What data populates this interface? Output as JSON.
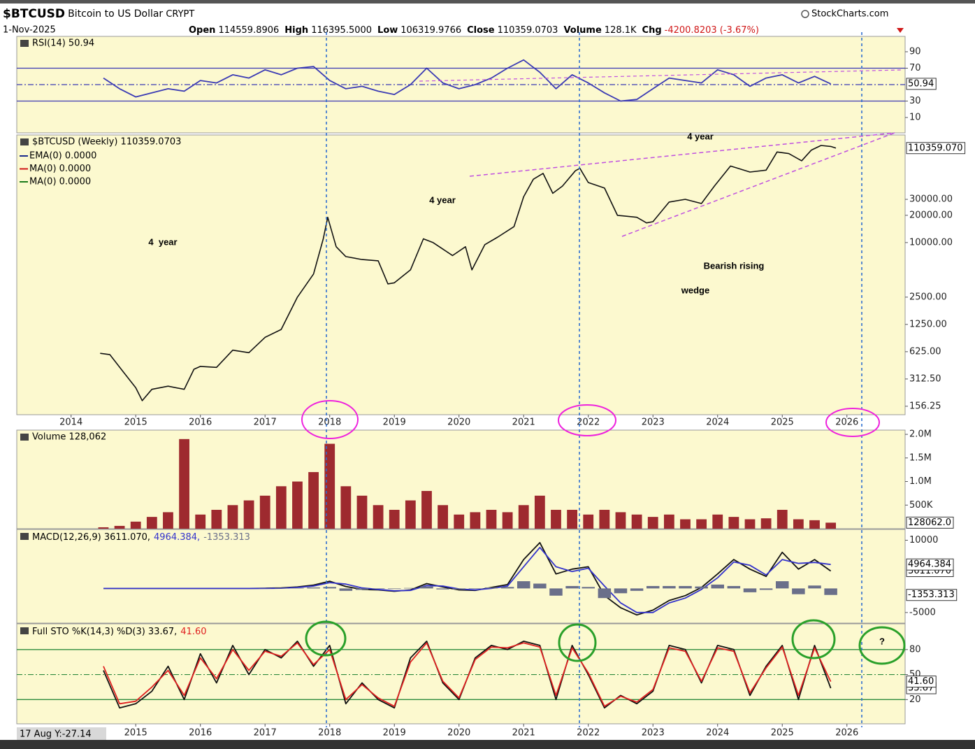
{
  "header": {
    "symbol": "$BTCUSD",
    "name": "Bitcoin to US Dollar",
    "exchange": "CRYPT",
    "source": "StockCharts.com",
    "date": "1-Nov-2025",
    "quote": [
      {
        "label": "Open",
        "value": "114559.8906"
      },
      {
        "label": "High",
        "value": "116395.5000"
      },
      {
        "label": "Low",
        "value": "106319.9766"
      },
      {
        "label": "Close",
        "value": "110359.0703"
      },
      {
        "label": "Volume",
        "value": "128.1K"
      },
      {
        "label": "Chg",
        "value": "-4200.8203 (-3.67%)"
      }
    ]
  },
  "footer": "17 Aug Y:-27.14",
  "chart_data": [
    {
      "type": "line",
      "title": "RSI(14) 50.94",
      "xlim": [
        2013.16,
        2026.9
      ],
      "ylim": [
        -8.7,
        108.7
      ],
      "yticks": [
        10,
        30,
        70,
        90
      ],
      "hlines": [
        70,
        30
      ],
      "dashlines": [
        50
      ],
      "ref_color": "#3a3ab4",
      "x": [
        2014.5,
        2014.75,
        2015,
        2015.25,
        2015.5,
        2015.75,
        2016,
        2016.25,
        2016.5,
        2016.75,
        2017,
        2017.25,
        2017.5,
        2017.75,
        2018,
        2018.25,
        2018.5,
        2018.75,
        2019,
        2019.25,
        2019.5,
        2019.75,
        2020,
        2020.25,
        2020.5,
        2020.75,
        2021,
        2021.25,
        2021.5,
        2021.75,
        2022,
        2022.25,
        2022.5,
        2022.75,
        2023,
        2023.25,
        2023.5,
        2023.75,
        2024,
        2024.25,
        2024.5,
        2024.75,
        2025,
        2025.25,
        2025.5,
        2025.75
      ],
      "series": [
        {
          "name": "RSI(14)",
          "color": "#3a3ab4",
          "last_label": "50.94",
          "values": [
            58,
            45,
            35,
            40,
            45,
            42,
            55,
            52,
            62,
            58,
            68,
            62,
            70,
            72,
            55,
            45,
            48,
            42,
            38,
            50,
            70,
            52,
            45,
            50,
            58,
            70,
            80,
            65,
            45,
            62,
            52,
            40,
            30,
            32,
            45,
            58,
            55,
            52,
            68,
            62,
            48,
            58,
            62,
            52,
            60,
            50.94
          ]
        }
      ]
    },
    {
      "type": "line",
      "log_scale": true,
      "title": "$BTCUSD (Weekly) 110359.0703",
      "legend": [
        {
          "text": "EMA(0) 0.0000",
          "color": "#1a2a8c"
        },
        {
          "text": "MA(0) 0.0000",
          "color": "#d01818"
        },
        {
          "text": "MA(0) 0.0000",
          "color": "#1a7a1a"
        }
      ],
      "xlim": [
        2013.16,
        2026.9
      ],
      "xticks": [
        2014,
        2015,
        2016,
        2017,
        2018,
        2019,
        2020,
        2021,
        2022,
        2023,
        2024,
        2025,
        2026
      ],
      "ylim": [
        126,
        154000
      ],
      "yticks": [
        156.25,
        {
          "value": 312.5,
          "label": "312.50"
        },
        {
          "value": 625,
          "label": "625.00"
        },
        {
          "value": 1250,
          "label": "1250.00"
        },
        {
          "value": 2500,
          "label": "2500.00"
        },
        {
          "value": 10000,
          "label": "10000.00"
        },
        {
          "value": 20000,
          "label": "20000.00"
        },
        {
          "value": 30000,
          "label": "30000.00"
        }
      ],
      "x": [
        2014.45,
        2014.6,
        2014.8,
        2015.0,
        2015.1,
        2015.25,
        2015.5,
        2015.75,
        2015.9,
        2016.0,
        2016.25,
        2016.5,
        2016.75,
        2017.0,
        2017.25,
        2017.5,
        2017.75,
        2017.9,
        2017.97,
        2018.1,
        2018.25,
        2018.5,
        2018.75,
        2018.9,
        2019.0,
        2019.25,
        2019.45,
        2019.6,
        2019.9,
        2020.1,
        2020.2,
        2020.4,
        2020.6,
        2020.85,
        2021.0,
        2021.15,
        2021.3,
        2021.45,
        2021.6,
        2021.8,
        2021.87,
        2022.0,
        2022.25,
        2022.45,
        2022.75,
        2022.9,
        2023.0,
        2023.25,
        2023.5,
        2023.75,
        2023.95,
        2024.2,
        2024.5,
        2024.75,
        2024.92,
        2025.1,
        2025.3,
        2025.45,
        2025.6,
        2025.75,
        2025.83
      ],
      "series": [
        {
          "name": "$BTCUSD",
          "color": "#111111",
          "last_label": "110359.070",
          "values": [
            600,
            580,
            380,
            250,
            180,
            240,
            260,
            240,
            400,
            430,
            420,
            650,
            610,
            900,
            1100,
            2500,
            4500,
            11000,
            19000,
            9000,
            7000,
            6500,
            6300,
            3500,
            3600,
            5000,
            11000,
            10000,
            7200,
            9000,
            5000,
            9500,
            11500,
            15000,
            32000,
            50000,
            58000,
            35000,
            42000,
            62000,
            66000,
            46000,
            40000,
            20000,
            19000,
            16500,
            17000,
            28000,
            30000,
            27000,
            42000,
            70000,
            60000,
            63000,
            100000,
            96000,
            80000,
            105000,
            118000,
            115000,
            110359.0703
          ]
        }
      ],
      "annotations": [
        {
          "text": "4 year",
          "color": "#4a86c8"
        },
        {
          "text": "4 year",
          "color": "#4a86c8"
        },
        {
          "text": "4  year",
          "color": "#4a86c8"
        },
        {
          "text": "Bearish rising",
          "color": "#e8201c"
        },
        {
          "text": "wedge",
          "color": "#e8201c"
        }
      ]
    },
    {
      "type": "bar",
      "title": "Volume 128,062",
      "color": "#9e2a2f",
      "last_label": "128062.0",
      "xlim": [
        2013.16,
        2026.9
      ],
      "ylim": [
        0,
        2090000
      ],
      "yticks": [
        {
          "value": 2000000,
          "label": "2.0M"
        },
        {
          "value": 1500000,
          "label": "1.5M"
        },
        {
          "value": 1000000,
          "label": "1.0M"
        },
        {
          "value": 500000,
          "label": "500K"
        }
      ],
      "x": [
        2014.5,
        2014.75,
        2015,
        2015.25,
        2015.5,
        2015.75,
        2016,
        2016.25,
        2016.5,
        2016.75,
        2017,
        2017.25,
        2017.5,
        2017.75,
        2018,
        2018.25,
        2018.5,
        2018.75,
        2019,
        2019.25,
        2019.5,
        2019.75,
        2020,
        2020.25,
        2020.5,
        2020.75,
        2021,
        2021.25,
        2021.5,
        2021.75,
        2022,
        2022.25,
        2022.5,
        2022.75,
        2023,
        2023.25,
        2023.5,
        2023.75,
        2024,
        2024.25,
        2024.5,
        2024.75,
        2025,
        2025.25,
        2025.5,
        2025.75
      ],
      "values": [
        30000,
        60000,
        150000,
        250000,
        350000,
        1900000,
        300000,
        400000,
        500000,
        600000,
        700000,
        900000,
        1000000,
        1200000,
        1800000,
        900000,
        700000,
        500000,
        400000,
        600000,
        800000,
        500000,
        300000,
        350000,
        400000,
        350000,
        500000,
        700000,
        400000,
        400000,
        300000,
        400000,
        350000,
        300000,
        250000,
        300000,
        200000,
        200000,
        300000,
        250000,
        200000,
        220000,
        400000,
        200000,
        180000,
        128062
      ]
    },
    {
      "type": "line",
      "title_parts": [
        "MACD(12,26,9) 3611.070,",
        "4964.384,",
        "-1353.313"
      ],
      "xlim": [
        2013.16,
        2026.9
      ],
      "ylim": [
        -7200,
        12250
      ],
      "yticks": [
        10000,
        -5000
      ],
      "x": [
        2014.5,
        2014.75,
        2015,
        2015.25,
        2015.5,
        2015.75,
        2016,
        2016.25,
        2016.5,
        2016.75,
        2017,
        2017.25,
        2017.5,
        2017.75,
        2018,
        2018.25,
        2018.5,
        2018.75,
        2019,
        2019.25,
        2019.5,
        2019.75,
        2020,
        2020.25,
        2020.5,
        2020.75,
        2021,
        2021.25,
        2021.5,
        2021.75,
        2022,
        2022.25,
        2022.5,
        2022.75,
        2023,
        2023.25,
        2023.5,
        2023.75,
        2024,
        2024.25,
        2024.5,
        2024.75,
        2025,
        2025.25,
        2025.5,
        2025.75
      ],
      "series": [
        {
          "name": "MACD",
          "color": "#111111",
          "last_label": "3611.070",
          "values": [
            0,
            0,
            0,
            0,
            0,
            0,
            0,
            0,
            0,
            0,
            50,
            100,
            300,
            700,
            1500,
            400,
            -200,
            -300,
            -600,
            -300,
            1000,
            300,
            -300,
            -400,
            200,
            800,
            6000,
            9500,
            3000,
            4000,
            4500,
            -1500,
            -4000,
            -5500,
            -4500,
            -2500,
            -1500,
            200,
            3000,
            6000,
            4000,
            2500,
            7500,
            4000,
            6000,
            3611.07
          ]
        },
        {
          "name": "Signal",
          "color": "#3333cc",
          "last_label": "4964.384",
          "values": [
            0,
            0,
            0,
            0,
            0,
            0,
            0,
            0,
            0,
            0,
            0,
            50,
            200,
            500,
            1200,
            900,
            100,
            -200,
            -500,
            -400,
            600,
            500,
            -100,
            -300,
            0,
            500,
            4500,
            8500,
            4500,
            3500,
            4200,
            500,
            -3000,
            -5000,
            -5000,
            -3000,
            -2000,
            -200,
            2200,
            5500,
            4800,
            2800,
            6000,
            5200,
            5400,
            4964.384
          ]
        },
        {
          "name": "Histogram",
          "style": "histogram",
          "color": "#6a6f8a",
          "last_label": "-1353.313",
          "values": [
            0,
            0,
            0,
            0,
            0,
            0,
            0,
            0,
            0,
            0,
            50,
            100,
            100,
            200,
            300,
            -500,
            -300,
            -100,
            -100,
            100,
            400,
            -200,
            -200,
            -100,
            200,
            300,
            1500,
            1000,
            -1500,
            500,
            300,
            -2000,
            -1000,
            -500,
            500,
            500,
            500,
            400,
            800,
            500,
            -800,
            -300,
            1500,
            -1200,
            600,
            -1353.313
          ]
        }
      ]
    },
    {
      "type": "line",
      "title_parts": [
        "Full STO %K(14,3) %D(3) 33.67,",
        "41.60"
      ],
      "xlim": [
        2013.16,
        2026.9
      ],
      "xticks": [
        2015,
        2016,
        2017,
        2018,
        2019,
        2020,
        2021,
        2022,
        2023,
        2024,
        2025,
        2026
      ],
      "ylim": [
        -9.1,
        110.9
      ],
      "yticks": [
        20,
        50,
        80
      ],
      "hlines": [
        80,
        20
      ],
      "dashlines": [
        50
      ],
      "ref_color": "#2e8b3e",
      "x": [
        2014.5,
        2014.75,
        2015,
        2015.25,
        2015.5,
        2015.75,
        2016,
        2016.25,
        2016.5,
        2016.75,
        2017,
        2017.25,
        2017.5,
        2017.75,
        2018,
        2018.25,
        2018.5,
        2018.75,
        2019,
        2019.25,
        2019.5,
        2019.75,
        2020,
        2020.25,
        2020.5,
        2020.75,
        2021,
        2021.25,
        2021.5,
        2021.75,
        2022,
        2022.25,
        2022.5,
        2022.75,
        2023,
        2023.25,
        2023.5,
        2023.75,
        2024,
        2024.25,
        2024.5,
        2024.75,
        2025,
        2025.25,
        2025.5,
        2025.75
      ],
      "series": [
        {
          "name": "%K",
          "color": "#111111",
          "last_label": "33.67",
          "values": [
            55,
            10,
            15,
            30,
            60,
            20,
            75,
            40,
            85,
            50,
            80,
            70,
            90,
            60,
            85,
            15,
            40,
            20,
            10,
            70,
            90,
            40,
            20,
            70,
            85,
            80,
            90,
            85,
            20,
            85,
            50,
            10,
            25,
            15,
            30,
            85,
            80,
            40,
            85,
            80,
            25,
            60,
            85,
            20,
            85,
            33.67
          ]
        },
        {
          "name": "%D",
          "color": "#e02020",
          "last_label": "41.60",
          "values": [
            60,
            15,
            18,
            35,
            55,
            25,
            70,
            45,
            80,
            55,
            78,
            72,
            88,
            62,
            80,
            20,
            38,
            22,
            12,
            65,
            88,
            42,
            22,
            68,
            83,
            82,
            88,
            83,
            25,
            82,
            52,
            12,
            24,
            17,
            32,
            82,
            78,
            42,
            82,
            78,
            28,
            58,
            83,
            25,
            82,
            41.6
          ]
        }
      ],
      "annotations": [
        {
          "text": "?",
          "color": "#e8201c"
        }
      ]
    }
  ]
}
